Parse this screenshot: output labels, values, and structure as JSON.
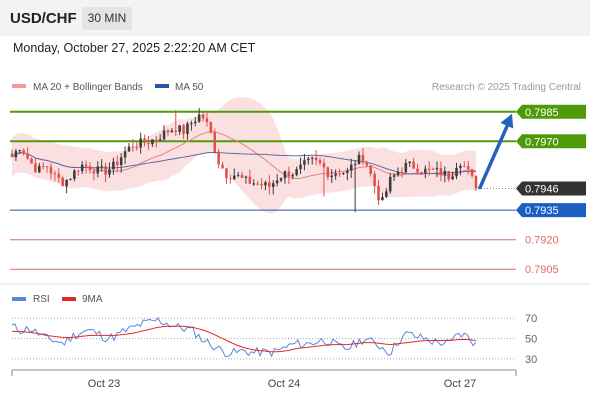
{
  "header": {
    "symbol": "USD/CHF",
    "timeframe": "30 MIN",
    "datetime": "Monday, October 27, 2025 2:22:20 AM CET"
  },
  "colors": {
    "up": "#3c3c3c",
    "down": "#e0504a",
    "bb_fill": "#fadadd",
    "ma20": "#e88080",
    "ma50": "#5a6aa8",
    "support_line": "#2b55a0",
    "support_tag": "#1a5fc4",
    "resistance_green": "#4f9a08",
    "resistance_red": "#e06b6b",
    "price_tag": "#333333",
    "arrow": "#2563b8",
    "rsi": "#5b85d9",
    "rsi_ma": "#e02a2a"
  },
  "chart_data": [
    {
      "type": "candlestick",
      "legend": [
        {
          "name": "MA 20 + Bollinger Bands",
          "color": "#f09a9a"
        },
        {
          "name": "MA 50",
          "color": "#2b55a0"
        }
      ],
      "watermark": "Research © 2025 Trading Central",
      "ylim": [
        0.7898,
        0.7992
      ],
      "x_ticks": [
        "Oct 23",
        "Oct 24",
        "Oct 27"
      ],
      "levels": [
        {
          "label": "0.7985",
          "value": 0.7985,
          "kind": "resistance-green"
        },
        {
          "label": "0.7970",
          "value": 0.797,
          "kind": "resistance-green"
        },
        {
          "label": "0.7946",
          "value": 0.7946,
          "kind": "current-price"
        },
        {
          "label": "0.7935",
          "value": 0.7935,
          "kind": "support-blue"
        },
        {
          "label": "0.7920",
          "value": 0.792,
          "kind": "support-red"
        },
        {
          "label": "0.7905",
          "value": 0.7905,
          "kind": "support-red"
        }
      ],
      "forecast_arrow": {
        "from": 0.7946,
        "to": 0.7985,
        "direction": "up"
      },
      "price_path": [
        0.7962,
        0.7968,
        0.796,
        0.7955,
        0.7958,
        0.7952,
        0.7949,
        0.7953,
        0.7958,
        0.7957,
        0.7955,
        0.7955,
        0.7958,
        0.7964,
        0.7968,
        0.7969,
        0.797,
        0.7972,
        0.7975,
        0.7977,
        0.7975,
        0.798,
        0.7984,
        0.7976,
        0.796,
        0.7953,
        0.7953,
        0.795,
        0.7949,
        0.7948,
        0.7947,
        0.7952,
        0.7954,
        0.7954,
        0.7958,
        0.796,
        0.7958,
        0.7953,
        0.7955,
        0.7954,
        0.796,
        0.7962,
        0.795,
        0.7938,
        0.795,
        0.7955,
        0.7958,
        0.7957,
        0.7955,
        0.7955,
        0.7954,
        0.7952,
        0.7961,
        0.7955,
        0.7947
      ]
    },
    {
      "type": "line",
      "legend": [
        {
          "name": "RSI",
          "color": "#5b85d9"
        },
        {
          "name": "9MA",
          "color": "#e02a2a"
        }
      ],
      "ylim": [
        22,
        78
      ],
      "y_ticks": [
        70,
        50,
        30
      ],
      "rsi": [
        62,
        58,
        60,
        55,
        50,
        48,
        45,
        52,
        56,
        58,
        55,
        50,
        52,
        57,
        60,
        64,
        66,
        68,
        65,
        62,
        60,
        58,
        50,
        45,
        40,
        36,
        36,
        38,
        36,
        37,
        36,
        38,
        42,
        45,
        44,
        46,
        48,
        47,
        42,
        40,
        45,
        50,
        46,
        42,
        36,
        48,
        55,
        52,
        50,
        47,
        46,
        45,
        55,
        52,
        44
      ],
      "rsi_ma": [
        57,
        57,
        56,
        55,
        53,
        52,
        51,
        51,
        52,
        53,
        53,
        53,
        53,
        54,
        55,
        57,
        59,
        61,
        62,
        62,
        62,
        61,
        59,
        56,
        52,
        48,
        44,
        41,
        39,
        38,
        37,
        37,
        38,
        40,
        41,
        42,
        43,
        44,
        44,
        44,
        45,
        46,
        46,
        45,
        44,
        45,
        46,
        47,
        48,
        48,
        48,
        48,
        49,
        49,
        48
      ]
    }
  ]
}
